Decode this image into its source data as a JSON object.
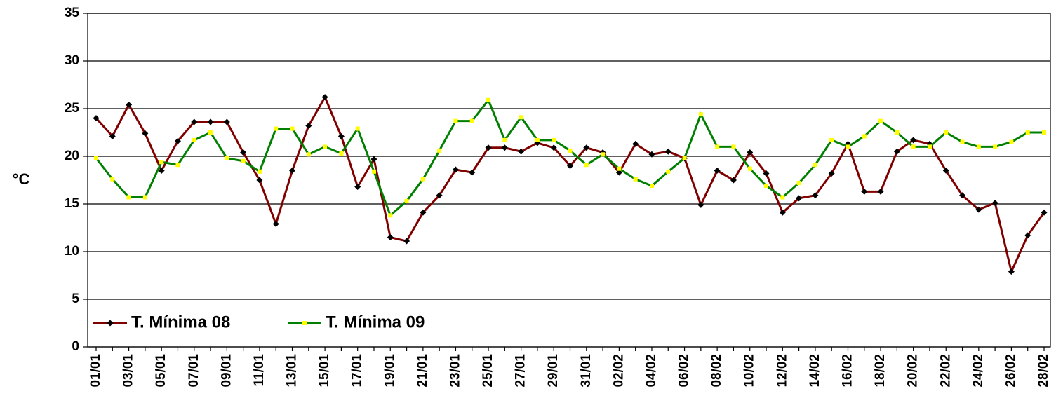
{
  "chart_data": {
    "type": "line",
    "y_label": "°C",
    "categories": [
      "01/01",
      null,
      "03/01",
      null,
      "05/01",
      null,
      "07/01",
      null,
      "09/01",
      null,
      "11/01",
      null,
      "13/01",
      null,
      "15/01",
      null,
      "17/01",
      null,
      "19/01",
      null,
      "21/01",
      null,
      "23/01",
      null,
      "25/01",
      null,
      "27/01",
      null,
      "29/01",
      null,
      "31/01",
      null,
      "02/02",
      null,
      "04/02",
      null,
      "06/02",
      null,
      "08/02",
      null,
      "10/02",
      null,
      "12/02",
      null,
      "14/02",
      null,
      "16/02",
      null,
      "18/02",
      null,
      "20/02",
      null,
      "22/02",
      null,
      "24/02",
      null,
      "26/02",
      null,
      "28/02"
    ],
    "series": [
      {
        "name": "T. Mínima 08",
        "color": "#800000",
        "marker_color": "#000000",
        "values": [
          24.0,
          22.1,
          25.4,
          22.4,
          18.5,
          21.6,
          23.6,
          23.6,
          23.6,
          20.4,
          17.5,
          12.9,
          18.5,
          23.2,
          26.2,
          22.1,
          16.8,
          19.7,
          11.5,
          11.1,
          14.1,
          15.9,
          18.6,
          18.3,
          20.9,
          20.9,
          20.5,
          21.4,
          20.9,
          19.0,
          20.9,
          20.4,
          18.3,
          21.3,
          20.2,
          20.5,
          19.8,
          14.9,
          18.5,
          17.5,
          20.4,
          18.2,
          14.1,
          15.6,
          15.9,
          18.2,
          21.3,
          16.3,
          16.3,
          20.5,
          21.7,
          21.3,
          18.5,
          15.9,
          14.4,
          15.1,
          7.9,
          11.7,
          14.1
        ]
      },
      {
        "name": "T. Mínima 09",
        "color": "#008000",
        "marker_color": "#ffff00",
        "values": [
          19.8,
          17.6,
          15.7,
          15.7,
          19.4,
          19.1,
          21.7,
          22.5,
          19.8,
          19.5,
          18.4,
          22.9,
          22.9,
          20.2,
          21.0,
          20.3,
          22.9,
          18.4,
          13.8,
          15.3,
          17.6,
          20.6,
          23.7,
          23.7,
          25.9,
          21.7,
          24.1,
          21.7,
          21.7,
          20.6,
          19.1,
          20.2,
          18.7,
          17.6,
          16.9,
          18.4,
          19.8,
          24.4,
          21.0,
          21.0,
          18.7,
          16.9,
          15.7,
          17.2,
          19.1,
          21.7,
          21.0,
          22.1,
          23.7,
          22.5,
          21.0,
          21.0,
          22.5,
          21.5,
          21.0,
          21.0,
          21.5,
          22.5,
          22.5
        ]
      }
    ],
    "ylim": [
      0,
      35
    ],
    "yticks": [
      0,
      5,
      10,
      15,
      20,
      25,
      30,
      35
    ],
    "grid": true,
    "legend": "lower left"
  }
}
